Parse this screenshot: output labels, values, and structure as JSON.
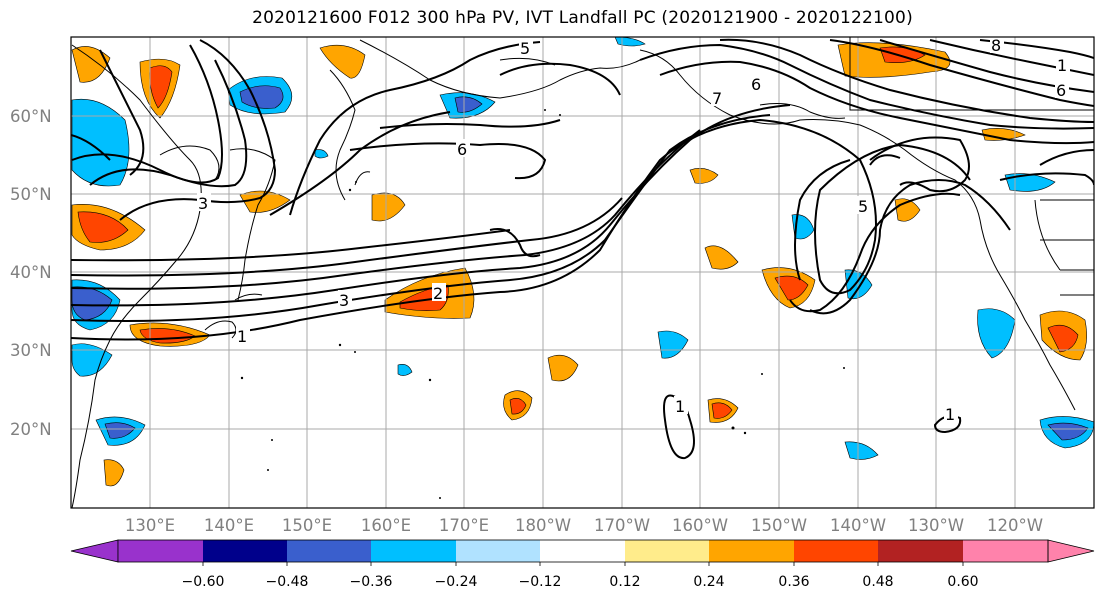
{
  "title": "2020121600 F012 300 hPa PV, IVT Landfall PC (2020121900 - 2020122100)",
  "lat_labels": [
    "60°N",
    "50°N",
    "40°N",
    "30°N",
    "20°N"
  ],
  "lon_labels": [
    "130°E",
    "140°E",
    "150°E",
    "160°E",
    "170°E",
    "180°W",
    "170°W",
    "160°W",
    "150°W",
    "140°W",
    "130°W",
    "120°W"
  ],
  "contour_labels": [
    "1",
    "2",
    "3",
    "3",
    "5",
    "5",
    "6",
    "6",
    "6",
    "7",
    "8",
    "1",
    "1",
    "1"
  ],
  "colorbar": {
    "ticks": [
      "−0.60",
      "−0.48",
      "−0.36",
      "−0.24",
      "−0.12",
      "0.12",
      "0.24",
      "0.36",
      "0.48",
      "0.60"
    ],
    "colors": [
      "#9932cc",
      "#00008b",
      "#3a5fcd",
      "#00bfff",
      "#b0e2ff",
      "#ffffff",
      "#ffec8b",
      "#ffa500",
      "#ff4500",
      "#b22222",
      "#ff82ab"
    ]
  }
}
